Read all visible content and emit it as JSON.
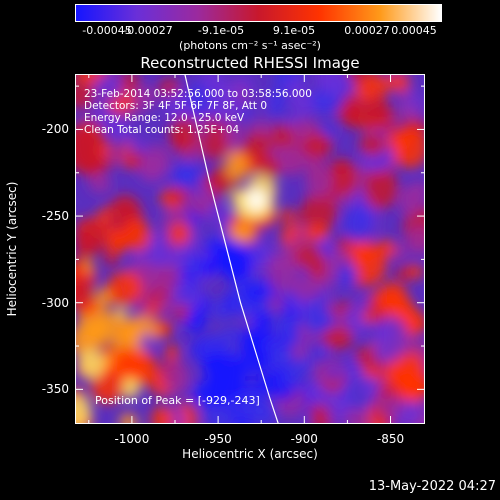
{
  "colorbar": {
    "ticks": [
      "-0.00045",
      "-0.00027",
      "-9.1e-05",
      "9.1e-05",
      "0.00027",
      "0.00045"
    ],
    "units": "(photons cm⁻² s⁻¹ asec⁻²)",
    "colors": [
      "#1515ff",
      "#6a2fd8",
      "#9b2a9e",
      "#c8182c",
      "#ff3300",
      "#ff9a1a",
      "#ffffff"
    ]
  },
  "chart_data": {
    "type": "heatmap",
    "title": "Reconstructed RHESSI Image",
    "xlabel": "Heliocentric X (arcsec)",
    "ylabel": "Heliocentric Y (arcsec)",
    "xlim": [
      -1033,
      -830
    ],
    "ylim": [
      -370,
      -168
    ],
    "x_ticks": [
      "-1000",
      "-950",
      "-900",
      "-850"
    ],
    "x_tick_values": [
      -1000,
      -950,
      -900,
      -850
    ],
    "y_ticks": [
      "-200",
      "-250",
      "-300",
      "-350"
    ],
    "y_tick_values": [
      -200,
      -250,
      -300,
      -350
    ],
    "limb_line": [
      [
        -970,
        -165
      ],
      [
        -955,
        -230
      ],
      [
        -937,
        -300
      ],
      [
        -920,
        -355
      ],
      [
        -915,
        -370
      ]
    ],
    "peak": {
      "x": -929,
      "y": -243
    },
    "annotations": {
      "time": "23-Feb-2014 03:52:56.000 to 03:58:56.000",
      "detectors": "Detectors: 3F 4F 5F 6F 7F 8F, Att 0",
      "energy": "Energy Range: 12.0 - 25.0 keV",
      "clean": "Clean     Total counts: 1.25E+04",
      "peak_label": "Position of Peak = [-929,-243]"
    }
  },
  "timestamp": "13-May-2022 04:27"
}
